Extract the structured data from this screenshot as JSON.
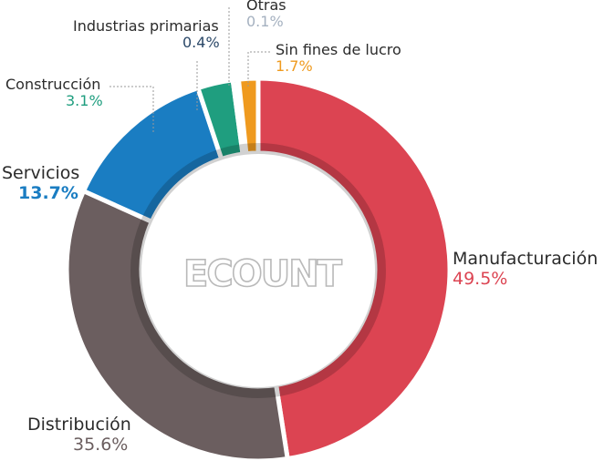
{
  "chart_data": {
    "type": "donut",
    "title": "",
    "logo_text": "ECOUNT",
    "series": [
      {
        "label": "Manufacturación",
        "value": 49.5,
        "value_label": "49.5%",
        "color": "#dc4452"
      },
      {
        "label": "Distribución",
        "value": 35.6,
        "value_label": "35.6%",
        "color": "#6b5e5f"
      },
      {
        "label": "Servicios",
        "value": 13.7,
        "value_label": "13.7%",
        "color": "#1a7dc2"
      },
      {
        "label": "Construcción",
        "value": 3.1,
        "value_label": "3.1%",
        "color": "#1f9e7f"
      },
      {
        "label": "Industrias primarias",
        "value": 0.4,
        "value_label": "0.4%",
        "color": "#2b4868"
      },
      {
        "label": "Otras",
        "value": 0.1,
        "value_label": "0.1%",
        "color": "#a5b1c0"
      },
      {
        "label": "Sin fines de lucro",
        "value": 1.7,
        "value_label": "1.7%",
        "color": "#ef9a1f"
      }
    ]
  }
}
